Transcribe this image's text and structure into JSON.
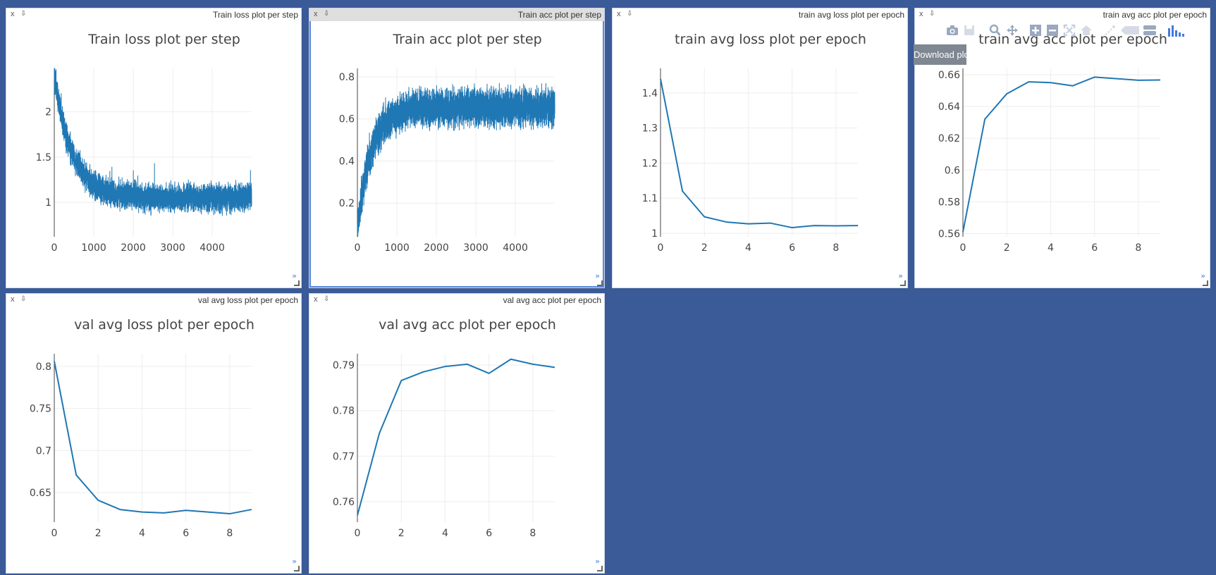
{
  "panes": [
    {
      "id": "train-loss-step",
      "label": "Train loss plot per step",
      "close": "x",
      "pin": "⇩",
      "expand": "»",
      "selected": false,
      "chart_data": {
        "type": "line",
        "title": "Train loss plot per step",
        "xlabel": "",
        "ylabel": "",
        "xlim": [
          0,
          4999
        ],
        "ylim": [
          0.62,
          2.48
        ],
        "xticks": [
          0,
          1000,
          2000,
          3000,
          4000
        ],
        "yticks": [
          1,
          1.5,
          2
        ],
        "series": [
          {
            "color": "#1f77b4",
            "generator": "noisy_decay",
            "start": 2.4,
            "end": 1.05,
            "decay_steps": 450,
            "noise": 0.11,
            "n_points": 5000
          }
        ]
      }
    },
    {
      "id": "train-acc-step",
      "label": "Train acc plot per step",
      "close": "x",
      "pin": "⇩",
      "expand": "»",
      "selected": true,
      "chart_data": {
        "type": "line",
        "title": "Train acc plot per step",
        "xlabel": "",
        "ylabel": "",
        "xlim": [
          0,
          4999
        ],
        "ylim": [
          0.04,
          0.84
        ],
        "xticks": [
          0,
          1000,
          2000,
          3000,
          4000
        ],
        "yticks": [
          0.2,
          0.4,
          0.6,
          0.8
        ],
        "series": [
          {
            "color": "#1f77b4",
            "generator": "noisy_rise",
            "start": 0.08,
            "end": 0.655,
            "rise_steps": 350,
            "noise": 0.065,
            "n_points": 5000
          }
        ]
      }
    },
    {
      "id": "train-avg-loss-epoch",
      "label": "train avg loss plot per epoch",
      "close": "x",
      "pin": "⇩",
      "expand": "»",
      "selected": false,
      "chart_data": {
        "type": "line",
        "title": "train avg loss plot per epoch",
        "xlabel": "",
        "ylabel": "",
        "xlim": [
          0,
          9
        ],
        "ylim": [
          0.99,
          1.47
        ],
        "xticks": [
          0,
          2,
          4,
          6,
          8
        ],
        "yticks": [
          1,
          1.1,
          1.2,
          1.3,
          1.4
        ],
        "series": [
          {
            "color": "#1f77b4",
            "x": [
              0,
              1,
              2,
              3,
              4,
              5,
              6,
              7,
              8,
              9
            ],
            "y": [
              1.44,
              1.12,
              1.047,
              1.032,
              1.027,
              1.029,
              1.016,
              1.022,
              1.021,
              1.022
            ]
          }
        ]
      }
    },
    {
      "id": "train-avg-acc-epoch",
      "label": "train avg acc plot per epoch",
      "close": "x",
      "pin": "⇩",
      "expand": "»",
      "selected": false,
      "chart_data": {
        "type": "line",
        "title": "train avg acc plot per epoch",
        "xlabel": "",
        "ylabel": "",
        "xlim": [
          0,
          9
        ],
        "ylim": [
          0.558,
          0.664
        ],
        "xticks": [
          0,
          2,
          4,
          6,
          8
        ],
        "yticks": [
          0.56,
          0.58,
          0.6,
          0.62,
          0.64,
          0.66
        ],
        "series": [
          {
            "color": "#1f77b4",
            "x": [
              0,
              1,
              2,
              3,
              4,
              5,
              6,
              7,
              8,
              9
            ],
            "y": [
              0.561,
              0.632,
              0.648,
              0.6555,
              0.655,
              0.653,
              0.6585,
              0.6575,
              0.6565,
              0.6567
            ]
          }
        ]
      }
    },
    {
      "id": "val-avg-loss-epoch",
      "label": "val avg loss plot per epoch",
      "close": "x",
      "pin": "⇩",
      "expand": "»",
      "selected": false,
      "chart_data": {
        "type": "line",
        "title": "val avg loss plot per epoch",
        "xlabel": "",
        "ylabel": "",
        "xlim": [
          0,
          9
        ],
        "ylim": [
          0.615,
          0.815
        ],
        "xticks": [
          0,
          2,
          4,
          6,
          8
        ],
        "yticks": [
          0.65,
          0.7,
          0.75,
          0.8
        ],
        "series": [
          {
            "color": "#1f77b4",
            "x": [
              0,
              1,
              2,
              3,
              4,
              5,
              6,
              7,
              8,
              9
            ],
            "y": [
              0.806,
              0.671,
              0.641,
              0.63,
              0.627,
              0.626,
              0.629,
              0.627,
              0.625,
              0.63
            ]
          }
        ]
      }
    },
    {
      "id": "val-avg-acc-epoch",
      "label": "val avg acc plot per epoch",
      "close": "x",
      "pin": "⇩",
      "expand": "»",
      "selected": false,
      "chart_data": {
        "type": "line",
        "title": "val avg acc plot per epoch",
        "xlabel": "",
        "ylabel": "",
        "xlim": [
          0,
          9
        ],
        "ylim": [
          0.7555,
          0.7925
        ],
        "xticks": [
          0,
          2,
          4,
          6,
          8
        ],
        "yticks": [
          0.76,
          0.77,
          0.78,
          0.79
        ],
        "series": [
          {
            "color": "#1f77b4",
            "x": [
              0,
              1,
              2,
              3,
              4,
              5,
              6,
              7,
              8,
              9
            ],
            "y": [
              0.757,
              0.775,
              0.7866,
              0.7885,
              0.7897,
              0.7902,
              0.7882,
              0.7913,
              0.7902,
              0.7895
            ]
          }
        ]
      }
    }
  ],
  "modebar": {
    "buttons": [
      "camera-icon",
      "save-icon",
      "zoom-icon",
      "pan-icon",
      "zoom-in-icon",
      "zoom-out-icon",
      "autoscale-icon",
      "home-icon",
      "spike-lines-icon",
      "compare-hover-icon",
      "closest-hover-icon",
      "plotly-logo-icon"
    ]
  },
  "tooltip": {
    "text": "Download plot as a png"
  },
  "colors": {
    "background": "#3a5a98",
    "series": "#1f77b4",
    "grid": "#eeeeee",
    "text": "#444444"
  }
}
